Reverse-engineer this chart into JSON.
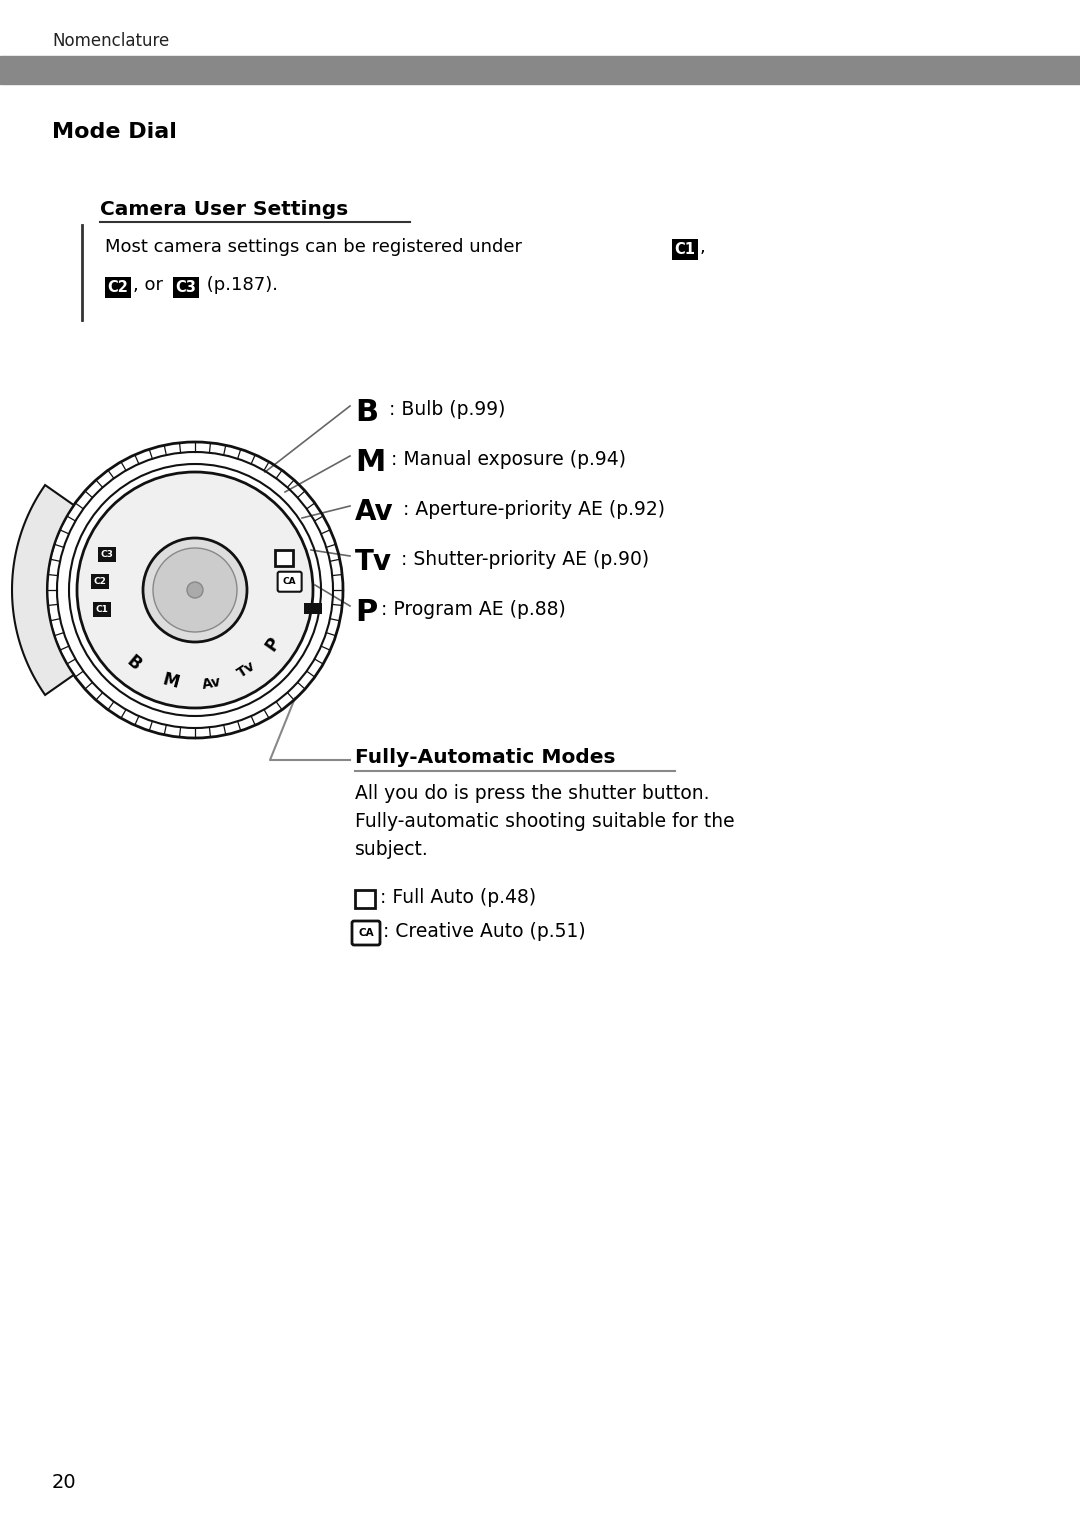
{
  "bg_color": "#ffffff",
  "header_bar_color": "#888888",
  "header_text": "Nomenclature",
  "page_number": "20",
  "mode_dial_title": "Mode Dial",
  "section1_title": "Camera User Settings",
  "modes": [
    {
      "symbol": "B",
      "sym_size": 22,
      "desc": " : Bulb (p.99)"
    },
    {
      "symbol": "M",
      "sym_size": 22,
      "desc": " : Manual exposure (p.94)"
    },
    {
      "symbol": "Av",
      "sym_size": 20,
      "desc": " : Aperture-priority AE (p.92)"
    },
    {
      "symbol": "Tv",
      "sym_size": 20,
      "desc": " : Shutter-priority AE (p.90)"
    },
    {
      "symbol": "P",
      "sym_size": 22,
      "desc": " : Program AE (p.88)"
    }
  ],
  "section2_title": "Fully-Automatic Modes",
  "section2_text_lines": [
    "All you do is press the shutter button.",
    "Fully-automatic shooting suitable for the",
    "subject."
  ]
}
